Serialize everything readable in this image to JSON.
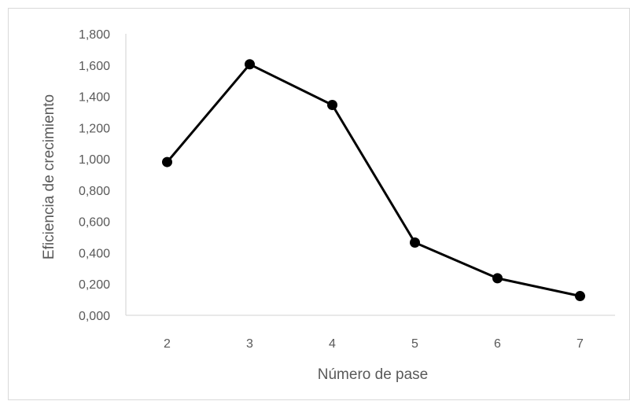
{
  "chart_data": {
    "type": "line",
    "x": [
      2,
      3,
      4,
      5,
      6,
      7
    ],
    "categories": [
      "2",
      "3",
      "4",
      "5",
      "6",
      "7"
    ],
    "series": [
      {
        "values": [
          0.98,
          1.605,
          1.345,
          0.465,
          0.237,
          0.123
        ]
      }
    ],
    "title": "",
    "xlabel": "Número de pase",
    "ylabel": "Eficiencia de crecimiento",
    "ylim": [
      0,
      1.8
    ],
    "yticks": [
      "0,000",
      "0,200",
      "0,400",
      "0,600",
      "0,800",
      "1,000",
      "1,200",
      "1,400",
      "1,600",
      "1,800"
    ],
    "grid": false,
    "legend": "none",
    "colors": {
      "line": "#000000",
      "marker": "#000000",
      "axis": "#d9d9d9",
      "text": "#595959",
      "border": "#d9d9d9"
    }
  }
}
